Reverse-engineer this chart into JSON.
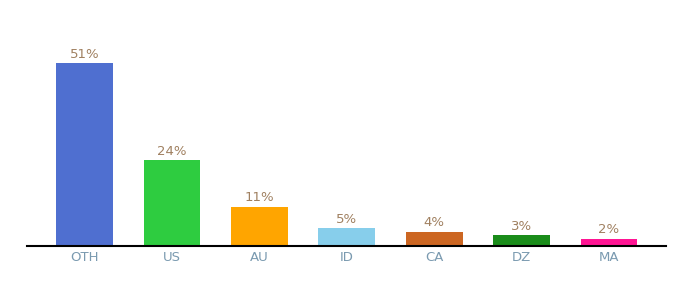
{
  "categories": [
    "OTH",
    "US",
    "AU",
    "ID",
    "CA",
    "DZ",
    "MA"
  ],
  "values": [
    51,
    24,
    11,
    5,
    4,
    3,
    2
  ],
  "labels": [
    "51%",
    "24%",
    "11%",
    "5%",
    "4%",
    "3%",
    "2%"
  ],
  "bar_colors": [
    "#4F6FD0",
    "#2ECC40",
    "#FFA500",
    "#87CEEB",
    "#CC6622",
    "#1A8C1A",
    "#FF1493"
  ],
  "background_color": "#ffffff",
  "ylim": [
    0,
    62
  ],
  "label_color": "#a08060",
  "label_fontsize": 9.5,
  "xlabel_color": "#7a9ab0",
  "xlabel_fontsize": 9.5
}
